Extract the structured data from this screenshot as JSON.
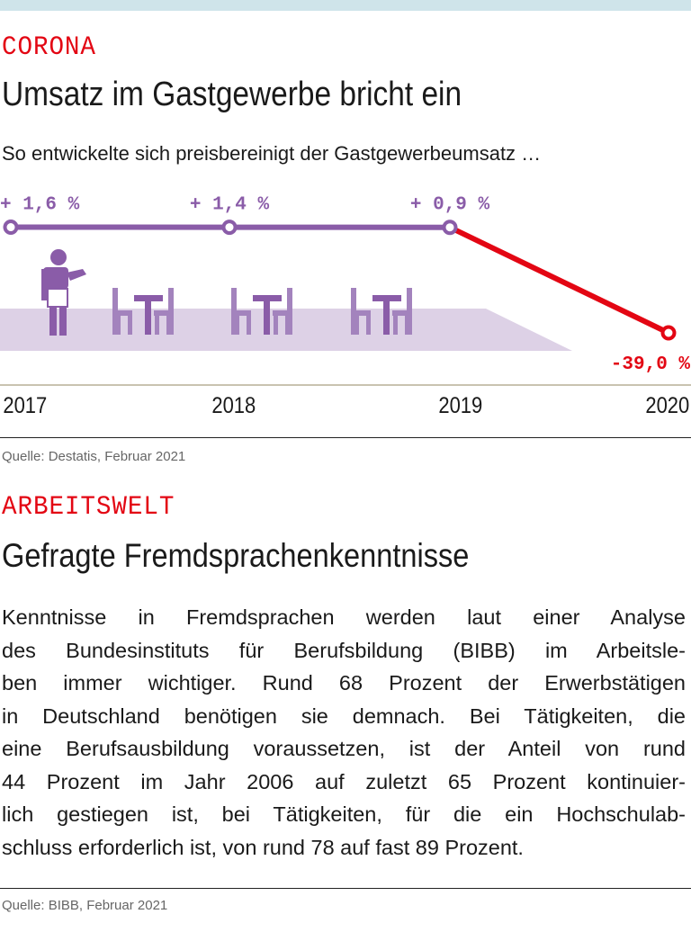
{
  "section1": {
    "kicker": "CORONA",
    "title": "Umsatz im Gastgewerbe bricht ein",
    "subtitle": "So entwickelte sich preisbereinigt der Gastgewerbeumsatz …",
    "source": "Quelle: Destatis, Februar 2021"
  },
  "chart_data": {
    "type": "line",
    "title": "Umsatz im Gastgewerbe bricht ein",
    "categories": [
      "2017",
      "2018",
      "2019",
      "2020"
    ],
    "values": [
      1.6,
      1.4,
      0.9,
      -39.0
    ],
    "data_labels": [
      "+ 1,6 %",
      "+ 1,4 %",
      "+ 0,9 %",
      "-39,0 %"
    ],
    "unit": "% change",
    "colors": {
      "positive": "#8a5ca8",
      "negative": "#e30613",
      "floor": "#ddd1e6"
    }
  },
  "section2": {
    "kicker": "ARBEITSWELT",
    "title": "Gefragte Fremdsprachenkenntnisse",
    "lines": [
      "Kenntnisse in Fremdsprachen werden laut einer Analyse",
      "des Bundesinstituts für Berufsbildung (BIBB) im Arbeitsle-",
      "ben immer wichtiger. Rund 68 Prozent der Erwerbstätigen",
      "in Deutschland benötigen sie demnach. Bei Tätigkeiten, die",
      "eine Berufsausbildung voraussetzen, ist der Anteil von rund",
      "44 Prozent im Jahr 2006 auf zuletzt 65 Prozent kontinuier-",
      "lich gestiegen ist, bei Tätigkeiten, für die ein Hochschulab-",
      "schluss erforderlich ist, von rund 78 auf fast 89 Prozent."
    ],
    "source": "Quelle: BIBB, Februar 2021"
  }
}
